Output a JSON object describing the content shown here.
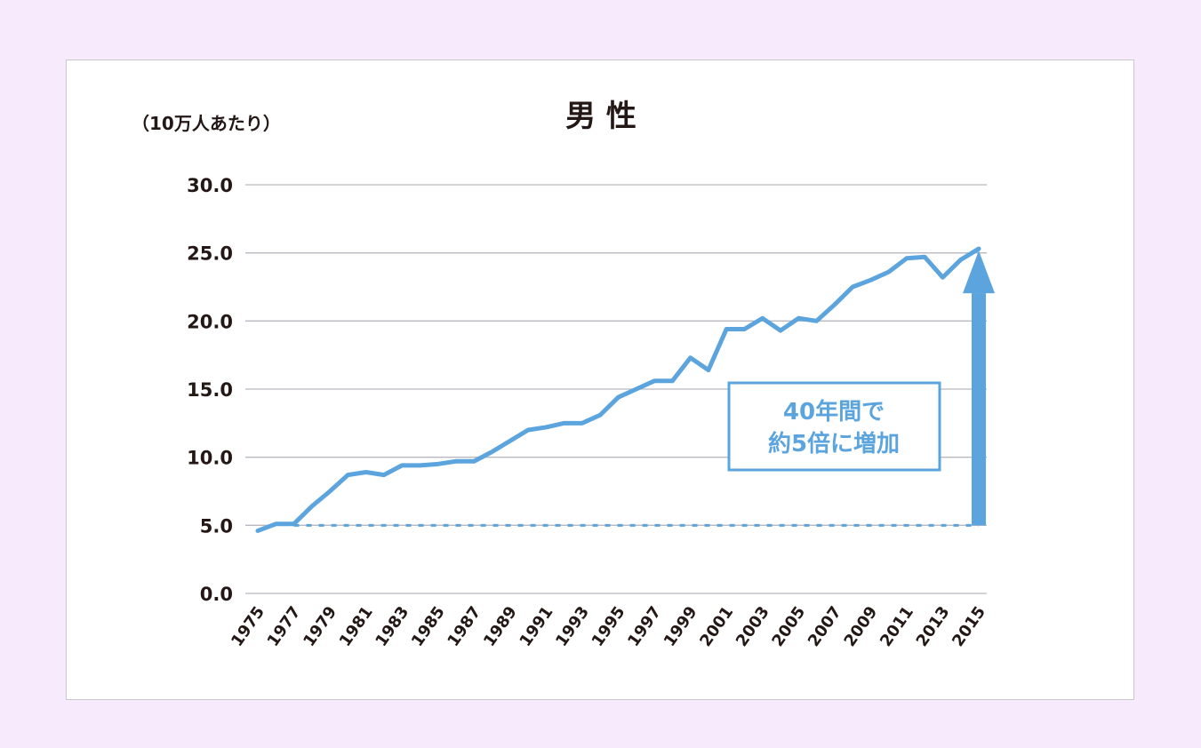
{
  "page": {
    "background": "#f7eafc",
    "card_background": "#ffffff"
  },
  "chart_data": {
    "type": "line",
    "title": "男 性",
    "ylabel": "（10万人あたり）",
    "xlabel": "",
    "ylim": [
      0,
      30
    ],
    "y_ticks": [
      "0.0",
      "5.0",
      "10.0",
      "15.0",
      "20.0",
      "25.0",
      "30.0"
    ],
    "x": [
      1975,
      1976,
      1977,
      1978,
      1979,
      1980,
      1981,
      1982,
      1983,
      1984,
      1985,
      1986,
      1987,
      1988,
      1989,
      1990,
      1991,
      1992,
      1993,
      1994,
      1995,
      1996,
      1997,
      1998,
      1999,
      2000,
      2001,
      2002,
      2003,
      2004,
      2005,
      2006,
      2007,
      2008,
      2009,
      2010,
      2011,
      2012,
      2013,
      2014,
      2015
    ],
    "x_tick_labels": [
      "1975",
      "1977",
      "1979",
      "1981",
      "1983",
      "1985",
      "1987",
      "1989",
      "1991",
      "1993",
      "1995",
      "1997",
      "1999",
      "2001",
      "2003",
      "2005",
      "2007",
      "2009",
      "2011",
      "2013",
      "2015"
    ],
    "series": [
      {
        "values": [
          4.6,
          5.1,
          5.1,
          6.4,
          7.5,
          8.7,
          8.9,
          8.7,
          9.4,
          9.4,
          9.5,
          9.7,
          9.7,
          10.4,
          11.2,
          12.0,
          12.2,
          12.5,
          12.5,
          13.1,
          14.4,
          15.0,
          15.6,
          15.6,
          17.3,
          16.4,
          19.4,
          19.4,
          20.2,
          19.3,
          20.2,
          20.0,
          21.2,
          22.5,
          23.0,
          23.6,
          24.6,
          24.7,
          23.2,
          24.5,
          25.3
        ],
        "color": "#5ba4dd"
      }
    ],
    "reference_line": {
      "value": 5.0,
      "style": "dashed",
      "color": "#5ba4dd"
    },
    "annotation": {
      "line1": "40年間で",
      "line2": "約5倍に増加",
      "color": "#5ba4dd"
    },
    "arrow": {
      "from": 5.0,
      "to": 25.3,
      "at_x": 2015,
      "color": "#5ba4dd"
    },
    "grid": true,
    "grid_color": "#b9b9bf",
    "text_color": "#231815"
  }
}
